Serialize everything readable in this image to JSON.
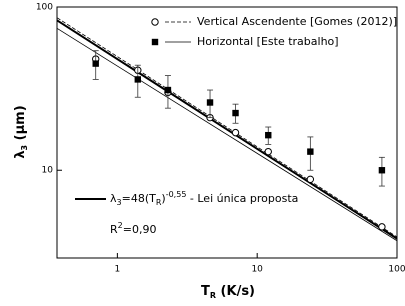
{
  "chart_data": {
    "type": "scatter",
    "xlabel": [
      "T",
      "R",
      " (K/s)"
    ],
    "ylabel": [
      "λ",
      "3",
      " (μm)"
    ],
    "xscale": "log",
    "yscale": "log",
    "xlim": [
      0.37,
      100
    ],
    "ylim": [
      2.9,
      100
    ],
    "xticks": [
      1,
      10,
      100
    ],
    "yticks": [
      10,
      100
    ],
    "series": [
      {
        "name": "Vertical Ascendente [Gomes (2012)]",
        "marker": "circle",
        "color": "#000000",
        "x": [
          0.7,
          1.4,
          2.3,
          4.6,
          7,
          12,
          24,
          78
        ],
        "values": [
          48,
          41,
          30,
          21,
          17,
          13,
          8.8,
          4.5
        ],
        "fit": {
          "x": [
            0.37,
            100
          ],
          "values": [
            86,
            3.9
          ],
          "dashed": true
        }
      },
      {
        "name": "Horizontal [Este trabalho]",
        "marker": "square",
        "color": "#000000",
        "x": [
          0.7,
          1.4,
          2.3,
          4.6,
          7,
          12,
          24,
          78
        ],
        "values": [
          45,
          36,
          31,
          26,
          22.4,
          16.4,
          13,
          10
        ],
        "errors": [
          9,
          8,
          7,
          5,
          3,
          2,
          3,
          2
        ],
        "fit": {
          "x": [
            0.37,
            100
          ],
          "values": [
            74,
            3.7
          ],
          "dashed": false
        }
      }
    ],
    "annotation": {
      "parts": [
        "λ",
        "3",
        "=48(T",
        "R",
        ")",
        "-0,55",
        " - Lei única proposta"
      ],
      "r2": [
        "R",
        "2",
        "=0,90"
      ],
      "fit": {
        "x": [
          0.37,
          100
        ],
        "values": [
          82.9,
          3.81
        ]
      }
    }
  }
}
